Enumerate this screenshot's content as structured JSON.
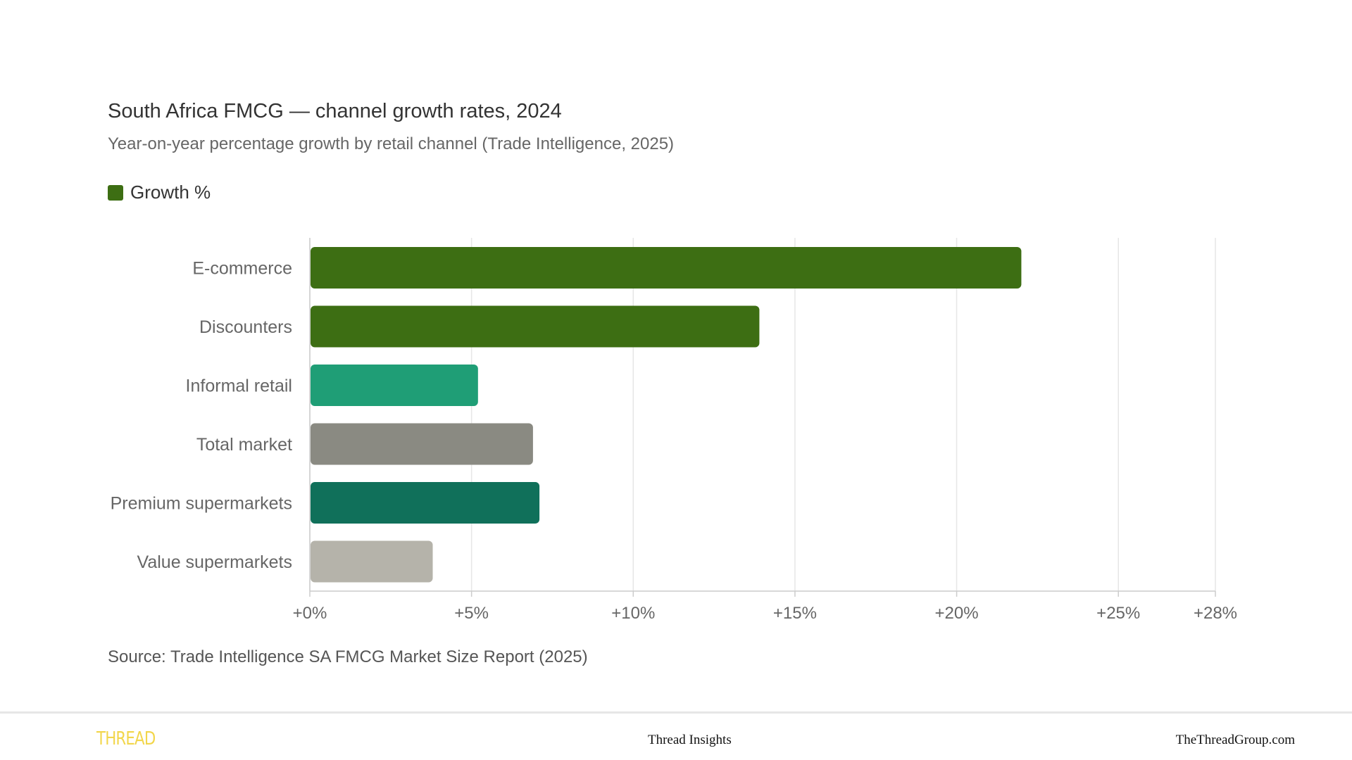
{
  "chart_data": {
    "type": "bar",
    "orientation": "horizontal",
    "title": "South Africa FMCG — channel growth rates, 2024",
    "subtitle": "Year-on-year percentage growth by retail channel (Trade Intelligence, 2025)",
    "legend": {
      "label": "Growth %",
      "color": "#3d6e13",
      "placement": "top-left"
    },
    "categories": [
      "E-commerce",
      "Discounters",
      "Informal retail",
      "Total market",
      "Premium supermarkets",
      "Value supermarkets"
    ],
    "values": [
      22,
      13.9,
      5.2,
      6.9,
      7.1,
      3.8
    ],
    "colors": [
      "#3d6e13",
      "#3d6e13",
      "#1f9e76",
      "#8a8a82",
      "#10705a",
      "#b5b3aa"
    ],
    "xlim": [
      0,
      28
    ],
    "x_ticks": [
      0,
      5,
      10,
      15,
      20,
      25,
      28
    ],
    "x_tick_labels": [
      "+0%",
      "+5%",
      "+10%",
      "+15%",
      "+20%",
      "+25%",
      "+28%"
    ],
    "grid": true,
    "source": "Source: Trade Intelligence SA FMCG Market Size Report (2025)"
  },
  "footer": {
    "logo_text": "THREAD",
    "center_text": "Thread Insights",
    "right_text": "TheThreadGroup.com",
    "logo_color": "#f2d64b"
  }
}
